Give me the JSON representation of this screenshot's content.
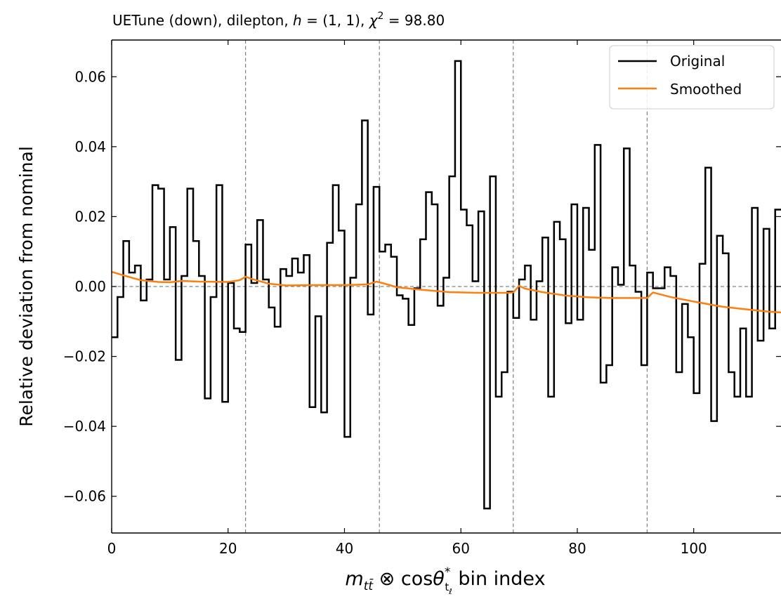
{
  "chart_data": {
    "type": "line",
    "title_parts": {
      "prefix": "UETune (down), dilepton, ",
      "h_symbol": "h",
      "h_value": " = (1, 1), ",
      "chi_symbol": "χ",
      "chi_exp": "2",
      "chi_value": " = 98.80"
    },
    "xlabel_parts": {
      "m": "m",
      "m_sub": "tt̄",
      "mid": " ⊗ cos",
      "theta": "θ",
      "theta_sup": "*",
      "theta_sub": "t",
      "theta_subsub": "ℓ",
      "suffix": " bin index"
    },
    "ylabel": "Relative deviation from nominal",
    "xlim": [
      0,
      115
    ],
    "ylim": [
      -0.0705,
      0.0705
    ],
    "xticks": [
      0,
      20,
      40,
      60,
      80,
      100
    ],
    "xtick_labels": [
      "0",
      "20",
      "40",
      "60",
      "80",
      "100"
    ],
    "yticks": [
      -0.06,
      -0.04,
      -0.02,
      0.0,
      0.02,
      0.04,
      0.06
    ],
    "ytick_labels": [
      "−0.06",
      "−0.04",
      "−0.02",
      "0.00",
      "0.02",
      "0.04",
      "0.06"
    ],
    "vlines": [
      23,
      46,
      69,
      92
    ],
    "hline": 0,
    "grid": false,
    "legend_position": "top-right",
    "series": [
      {
        "name": "Original",
        "color": "#000000",
        "drawstyle": "steps",
        "values": [
          -0.0145,
          -0.003,
          0.013,
          0.004,
          0.006,
          -0.004,
          0.002,
          0.029,
          0.028,
          0.002,
          0.017,
          -0.021,
          0.003,
          0.028,
          0.013,
          0.003,
          -0.032,
          -0.003,
          0.029,
          -0.033,
          0.001,
          -0.012,
          -0.013,
          0.012,
          0.001,
          0.019,
          0.002,
          -0.006,
          -0.0115,
          0.005,
          0.003,
          0.008,
          0.004,
          0.009,
          -0.0345,
          -0.0085,
          -0.036,
          0.0125,
          0.029,
          0.016,
          -0.043,
          0.0025,
          0.0235,
          0.0475,
          -0.008,
          0.0285,
          0.01,
          0.012,
          0.0085,
          -0.0025,
          -0.0035,
          -0.011,
          -0.0005,
          0.0135,
          0.027,
          0.0235,
          -0.0055,
          0.0025,
          0.0315,
          0.0645,
          0.022,
          0.0175,
          0.0015,
          0.0215,
          -0.0635,
          0.0315,
          -0.0315,
          -0.0245,
          -0.0015,
          -0.009,
          0.002,
          0.006,
          -0.0095,
          0.0015,
          0.014,
          -0.0315,
          0.0185,
          0.0135,
          -0.0105,
          0.0235,
          -0.0095,
          0.0225,
          0.0105,
          0.0405,
          -0.0275,
          -0.0225,
          0.0055,
          0.0005,
          0.0395,
          0.006,
          -0.0015,
          -0.0225,
          0.004,
          -0.0005,
          -0.0005,
          0.0055,
          0.003,
          -0.0245,
          -0.005,
          -0.0145,
          -0.0305,
          0.0065,
          0.034,
          -0.0385,
          0.0145,
          0.0095,
          -0.0245,
          -0.0315,
          -0.012,
          -0.0315,
          0.0225,
          -0.0155,
          0.0165,
          -0.012,
          0.022
        ]
      },
      {
        "name": "Smoothed",
        "color": "#ff7f0e",
        "drawstyle": "line",
        "points": [
          [
            0,
            0.0042
          ],
          [
            2,
            0.0032
          ],
          [
            5,
            0.0018
          ],
          [
            8,
            0.0013
          ],
          [
            10,
            0.0012
          ],
          [
            12,
            0.0016
          ],
          [
            15,
            0.0014
          ],
          [
            20,
            0.0013
          ],
          [
            22,
            0.0018
          ],
          [
            23,
            0.0028
          ],
          [
            24,
            0.0022
          ],
          [
            27,
            0.0008
          ],
          [
            30,
            0.0003
          ],
          [
            35,
            0.0004
          ],
          [
            40,
            0.0004
          ],
          [
            44,
            0.0006
          ],
          [
            45.5,
            0.0014
          ],
          [
            46.5,
            0.001
          ],
          [
            49,
            -0.0002
          ],
          [
            53,
            -0.0009
          ],
          [
            58,
            -0.0016
          ],
          [
            63,
            -0.0018
          ],
          [
            68,
            -0.0018
          ],
          [
            69,
            -0.0017
          ],
          [
            70,
            0.0002
          ],
          [
            71,
            -0.0006
          ],
          [
            74,
            -0.0016
          ],
          [
            78,
            -0.0026
          ],
          [
            82,
            -0.0031
          ],
          [
            86,
            -0.0033
          ],
          [
            90,
            -0.0033
          ],
          [
            92,
            -0.0033
          ],
          [
            93,
            -0.0017
          ],
          [
            96,
            -0.003
          ],
          [
            100,
            -0.0043
          ],
          [
            105,
            -0.0058
          ],
          [
            110,
            -0.0067
          ],
          [
            113,
            -0.0072
          ],
          [
            115,
            -0.0074
          ]
        ]
      }
    ]
  }
}
